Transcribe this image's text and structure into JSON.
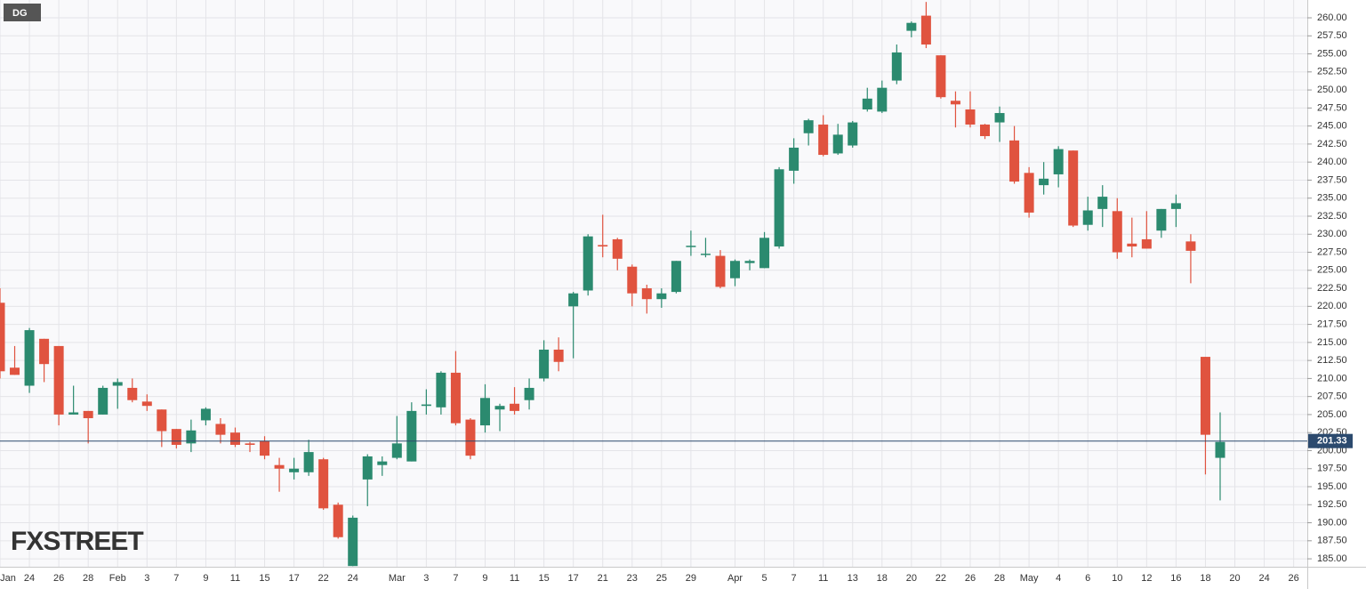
{
  "chart_data": {
    "type": "candlestick",
    "title": "DG",
    "watermark": "FXSTREET",
    "categories": [
      "Jan",
      null,
      "24",
      null,
      "26",
      null,
      "28",
      null,
      "Feb",
      null,
      "3",
      null,
      "7",
      null,
      "9",
      null,
      "11",
      null,
      "15",
      null,
      "17",
      null,
      "22",
      null,
      "24",
      null,
      null,
      "Mar",
      null,
      "3",
      null,
      "7",
      null,
      "9",
      null,
      "11",
      null,
      "15",
      null,
      "17",
      null,
      "21",
      null,
      "23",
      null,
      "25",
      null,
      "29",
      null,
      null,
      "Apr",
      null,
      "5",
      null,
      "7",
      null,
      "11",
      null,
      "13",
      null,
      "18",
      null,
      "20",
      null,
      "22",
      null,
      "26",
      null,
      "28",
      null,
      "May",
      null,
      "4",
      null,
      "6",
      null,
      "10",
      null,
      "12",
      null,
      "16",
      null,
      "18",
      null,
      "20",
      null,
      "24",
      null,
      "26"
    ],
    "open": [
      220.5,
      211.5,
      209,
      215.5,
      214.5,
      205,
      205.5,
      205,
      209,
      208.7,
      206.8,
      205.7,
      203,
      201,
      204.2,
      203.7,
      202.5,
      201,
      201.3,
      198,
      197,
      197,
      198.8,
      192.5,
      184,
      196,
      198,
      199,
      198.5,
      206.2,
      206,
      210.8,
      204.3,
      203.5,
      205.7,
      206.5,
      207,
      210,
      214,
      220,
      222.2,
      228.5,
      229.3,
      225.5,
      222.5,
      221,
      222,
      228.3,
      227.2,
      227,
      223.9,
      226,
      225.3,
      228.3,
      238.8,
      244,
      245.2,
      241.2,
      242.3,
      247.3,
      247,
      251.3,
      258.2,
      260.3,
      254.8,
      248.5,
      247.3,
      245.2,
      245.5,
      243,
      238.5,
      236.8,
      238.3,
      241.6,
      231.3,
      233.5,
      233.2,
      228.7,
      229.3,
      230.5,
      233.5,
      229,
      213,
      199,
      null,
      null,
      null,
      null,
      null
    ],
    "high": [
      222.5,
      214.5,
      217,
      215.5,
      214.5,
      209,
      205.5,
      209,
      210,
      210,
      207.8,
      205.7,
      203,
      204.3,
      206,
      204.5,
      203.2,
      201.2,
      202,
      199,
      199,
      201.5,
      199,
      192.8,
      191,
      199.5,
      199.2,
      204.8,
      206.7,
      208.5,
      211,
      213.8,
      204.5,
      209.2,
      206.5,
      208.8,
      210,
      215.3,
      215.7,
      222,
      230,
      232.7,
      229.5,
      225.8,
      223,
      222.5,
      226.3,
      230.5,
      229.5,
      227.8,
      226.5,
      226.5,
      230.3,
      239.3,
      243.3,
      246,
      246.5,
      245.3,
      245.7,
      250.3,
      251.3,
      256.3,
      259.5,
      262.2,
      254.8,
      249.8,
      249.8,
      245.3,
      247.7,
      245,
      239.3,
      240,
      242.2,
      241.6,
      235.2,
      236.8,
      235,
      232.3,
      233.2,
      233.5,
      235.5,
      230,
      213,
      205.3,
      null,
      null,
      null,
      null,
      null
    ],
    "low": [
      210,
      210.5,
      208,
      209.5,
      203.5,
      205,
      201,
      205,
      205.8,
      206.7,
      205.5,
      200.5,
      200.3,
      199.8,
      203.5,
      201,
      200.5,
      199.8,
      198.8,
      194.3,
      196,
      196.5,
      191.8,
      187.8,
      184,
      192.3,
      196.5,
      198.8,
      198.5,
      205,
      205,
      203.5,
      198.8,
      202.5,
      202.7,
      205,
      205.7,
      209.6,
      211,
      212.8,
      221.5,
      226.8,
      225,
      220,
      219,
      219.8,
      221.8,
      227,
      226.8,
      222.5,
      222.8,
      225,
      225.3,
      228,
      237,
      242.3,
      240.8,
      241,
      242,
      247,
      246.8,
      250.8,
      257.3,
      255.8,
      248.8,
      244.8,
      244.8,
      243.2,
      242.8,
      237,
      232.3,
      235.5,
      236.5,
      231,
      230.5,
      231,
      226.6,
      226.8,
      228,
      229.5,
      231,
      223.2,
      196.7,
      193.1,
      null,
      null,
      null,
      null,
      null
    ],
    "close": [
      211,
      210.5,
      216.7,
      212,
      205,
      205.3,
      204.5,
      208.7,
      209.5,
      207,
      206.2,
      202.7,
      200.8,
      202.8,
      205.8,
      202.2,
      200.8,
      200.8,
      199.3,
      197.5,
      197.5,
      199.8,
      192,
      188,
      190.7,
      199.2,
      198.5,
      201,
      205.5,
      206.4,
      210.8,
      203.8,
      199.3,
      207.3,
      206.2,
      205.5,
      208.7,
      214,
      212.3,
      221.8,
      229.7,
      228.3,
      226.6,
      221.8,
      221,
      221.8,
      226.3,
      228.4,
      227.3,
      222.7,
      226.3,
      226.3,
      229.5,
      239,
      242,
      245.8,
      241,
      243.8,
      245.5,
      248.8,
      250.3,
      255.2,
      259.3,
      256.3,
      249,
      248,
      245.2,
      243.6,
      246.8,
      237.3,
      233,
      237.7,
      241.8,
      231.2,
      233.3,
      235.2,
      227.5,
      228.3,
      228,
      233.5,
      234.3,
      227.7,
      202.2,
      201.2,
      null,
      null,
      null,
      null,
      null
    ],
    "up_color": "#2b8a6f",
    "down_color": "#e0533f",
    "last_price": 201.33,
    "last_price_color": "#2c4a6e",
    "ylim": [
      183.9,
      262.47
    ],
    "yticks": [
      {
        "value": 185,
        "label": "185.00"
      },
      {
        "value": 187.5,
        "label": "187.50"
      },
      {
        "value": 190,
        "label": "190.00"
      },
      {
        "value": 192.5,
        "label": "192.50"
      },
      {
        "value": 195,
        "label": "195.00"
      },
      {
        "value": 197.5,
        "label": "197.50"
      },
      {
        "value": 200,
        "label": "200.00"
      },
      {
        "value": 202.5,
        "label": "202.50"
      },
      {
        "value": 205,
        "label": "205.00"
      },
      {
        "value": 207.5,
        "label": "207.50"
      },
      {
        "value": 210,
        "label": "210.00"
      },
      {
        "value": 212.5,
        "label": "212.50"
      },
      {
        "value": 215,
        "label": "215.00"
      },
      {
        "value": 217.5,
        "label": "217.50"
      },
      {
        "value": 220,
        "label": "220.00"
      },
      {
        "value": 222.5,
        "label": "222.50"
      },
      {
        "value": 225,
        "label": "225.00"
      },
      {
        "value": 227.5,
        "label": "227.50"
      },
      {
        "value": 230,
        "label": "230.00"
      },
      {
        "value": 232.5,
        "label": "232.50"
      },
      {
        "value": 235,
        "label": "235.00"
      },
      {
        "value": 237.5,
        "label": "237.50"
      },
      {
        "value": 240,
        "label": "240.00"
      },
      {
        "value": 242.5,
        "label": "242.50"
      },
      {
        "value": 245,
        "label": "245.00"
      },
      {
        "value": 247.5,
        "label": "247.50"
      },
      {
        "value": 250,
        "label": "250.00"
      },
      {
        "value": 252.5,
        "label": "252.50"
      },
      {
        "value": 255,
        "label": "255.00"
      },
      {
        "value": 257.5,
        "label": "257.50"
      },
      {
        "value": 260,
        "label": "260.00"
      }
    ],
    "grid": true
  }
}
